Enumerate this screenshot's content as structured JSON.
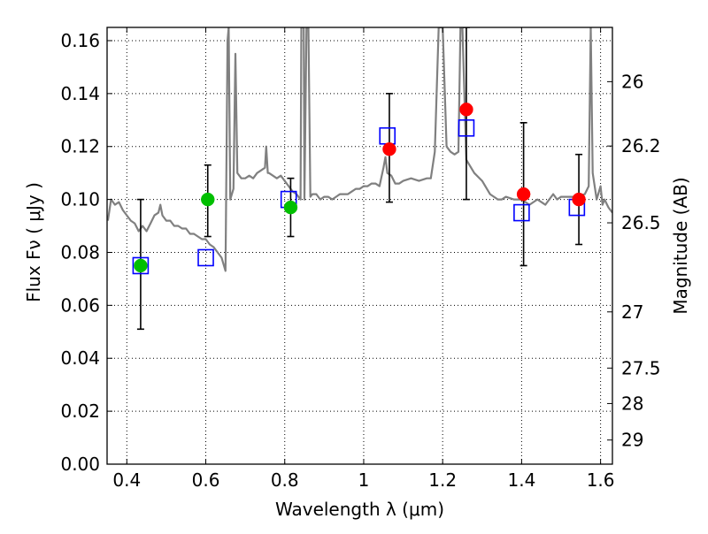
{
  "chart_data": {
    "type": "scatter",
    "xlabel": "Wavelength  λ (μm)",
    "ylabel": "Flux  Fν  ( μJy )",
    "y2label": "Magnitude (AB)",
    "xlim": [
      0.35,
      1.63
    ],
    "ylim": [
      0.0,
      0.165
    ],
    "grid": true,
    "x_ticks": [
      {
        "value": 0.4,
        "label": "0.4"
      },
      {
        "value": 0.6,
        "label": "0.6"
      },
      {
        "value": 0.8,
        "label": "0.8"
      },
      {
        "value": 1.0,
        "label": "1"
      },
      {
        "value": 1.2,
        "label": "1.2"
      },
      {
        "value": 1.4,
        "label": "1.4"
      },
      {
        "value": 1.6,
        "label": "1.6"
      }
    ],
    "y_ticks": [
      {
        "value": 0.0,
        "label": "0.00"
      },
      {
        "value": 0.02,
        "label": "0.02"
      },
      {
        "value": 0.04,
        "label": "0.04"
      },
      {
        "value": 0.06,
        "label": "0.06"
      },
      {
        "value": 0.08,
        "label": "0.08"
      },
      {
        "value": 0.1,
        "label": "0.10"
      },
      {
        "value": 0.12,
        "label": "0.12"
      },
      {
        "value": 0.14,
        "label": "0.14"
      },
      {
        "value": 0.16,
        "label": "0.16"
      }
    ],
    "y2_ticks": [
      {
        "value": 26,
        "label": "26"
      },
      {
        "value": 26.2,
        "label": "26.2"
      },
      {
        "value": 26.5,
        "label": "26.5"
      },
      {
        "value": 27,
        "label": "27"
      },
      {
        "value": 27.5,
        "label": "27.5"
      },
      {
        "value": 28,
        "label": "28"
      },
      {
        "value": 29,
        "label": "29"
      }
    ],
    "y2_zero_point_flux": 0.1445,
    "y2_zero_point_mag": 26,
    "series": [
      {
        "kind": "line",
        "color": "#808080",
        "points": [
          [
            0.352,
            0.092
          ],
          [
            0.36,
            0.1
          ],
          [
            0.37,
            0.098
          ],
          [
            0.38,
            0.099
          ],
          [
            0.39,
            0.096
          ],
          [
            0.4,
            0.094
          ],
          [
            0.41,
            0.092
          ],
          [
            0.42,
            0.091
          ],
          [
            0.43,
            0.088
          ],
          [
            0.44,
            0.09
          ],
          [
            0.45,
            0.088
          ],
          [
            0.46,
            0.091
          ],
          [
            0.47,
            0.094
          ],
          [
            0.48,
            0.095
          ],
          [
            0.485,
            0.098
          ],
          [
            0.49,
            0.094
          ],
          [
            0.5,
            0.092
          ],
          [
            0.51,
            0.092
          ],
          [
            0.52,
            0.09
          ],
          [
            0.53,
            0.09
          ],
          [
            0.54,
            0.089
          ],
          [
            0.55,
            0.089
          ],
          [
            0.56,
            0.087
          ],
          [
            0.57,
            0.087
          ],
          [
            0.58,
            0.086
          ],
          [
            0.59,
            0.085
          ],
          [
            0.6,
            0.085
          ],
          [
            0.61,
            0.083
          ],
          [
            0.62,
            0.082
          ],
          [
            0.63,
            0.08
          ],
          [
            0.64,
            0.078
          ],
          [
            0.65,
            0.073
          ],
          [
            0.655,
            0.16
          ],
          [
            0.658,
            0.165
          ],
          [
            0.662,
            0.1
          ],
          [
            0.67,
            0.104
          ],
          [
            0.675,
            0.155
          ],
          [
            0.68,
            0.11
          ],
          [
            0.69,
            0.108
          ],
          [
            0.7,
            0.108
          ],
          [
            0.71,
            0.109
          ],
          [
            0.72,
            0.108
          ],
          [
            0.73,
            0.11
          ],
          [
            0.74,
            0.111
          ],
          [
            0.75,
            0.112
          ],
          [
            0.753,
            0.12
          ],
          [
            0.757,
            0.11
          ],
          [
            0.76,
            0.11
          ],
          [
            0.77,
            0.109
          ],
          [
            0.78,
            0.108
          ],
          [
            0.79,
            0.109
          ],
          [
            0.8,
            0.107
          ],
          [
            0.81,
            0.105
          ],
          [
            0.82,
            0.103
          ],
          [
            0.83,
            0.102
          ],
          [
            0.84,
            0.1
          ],
          [
            0.842,
            0.165
          ],
          [
            0.848,
            0.165
          ],
          [
            0.85,
            0.1
          ],
          [
            0.855,
            0.165
          ],
          [
            0.86,
            0.165
          ],
          [
            0.865,
            0.101
          ],
          [
            0.87,
            0.102
          ],
          [
            0.88,
            0.102
          ],
          [
            0.89,
            0.1
          ],
          [
            0.9,
            0.101
          ],
          [
            0.91,
            0.101
          ],
          [
            0.92,
            0.1
          ],
          [
            0.93,
            0.101
          ],
          [
            0.94,
            0.102
          ],
          [
            0.95,
            0.102
          ],
          [
            0.96,
            0.102
          ],
          [
            0.97,
            0.103
          ],
          [
            0.98,
            0.104
          ],
          [
            0.99,
            0.104
          ],
          [
            1.0,
            0.105
          ],
          [
            1.01,
            0.105
          ],
          [
            1.02,
            0.106
          ],
          [
            1.03,
            0.106
          ],
          [
            1.04,
            0.105
          ],
          [
            1.05,
            0.112
          ],
          [
            1.055,
            0.116
          ],
          [
            1.06,
            0.11
          ],
          [
            1.07,
            0.109
          ],
          [
            1.08,
            0.106
          ],
          [
            1.09,
            0.106
          ],
          [
            1.1,
            0.107
          ],
          [
            1.12,
            0.108
          ],
          [
            1.14,
            0.107
          ],
          [
            1.16,
            0.108
          ],
          [
            1.17,
            0.108
          ],
          [
            1.18,
            0.118
          ],
          [
            1.19,
            0.165
          ],
          [
            1.2,
            0.165
          ],
          [
            1.21,
            0.12
          ],
          [
            1.22,
            0.118
          ],
          [
            1.23,
            0.117
          ],
          [
            1.24,
            0.118
          ],
          [
            1.245,
            0.165
          ],
          [
            1.25,
            0.165
          ],
          [
            1.26,
            0.115
          ],
          [
            1.28,
            0.11
          ],
          [
            1.3,
            0.107
          ],
          [
            1.32,
            0.102
          ],
          [
            1.34,
            0.1
          ],
          [
            1.35,
            0.1
          ],
          [
            1.36,
            0.101
          ],
          [
            1.38,
            0.1
          ],
          [
            1.4,
            0.1
          ],
          [
            1.42,
            0.098
          ],
          [
            1.44,
            0.1
          ],
          [
            1.45,
            0.099
          ],
          [
            1.46,
            0.098
          ],
          [
            1.47,
            0.1
          ],
          [
            1.48,
            0.102
          ],
          [
            1.49,
            0.1
          ],
          [
            1.5,
            0.101
          ],
          [
            1.52,
            0.101
          ],
          [
            1.54,
            0.101
          ],
          [
            1.56,
            0.102
          ],
          [
            1.57,
            0.105
          ],
          [
            1.575,
            0.165
          ],
          [
            1.58,
            0.11
          ],
          [
            1.59,
            0.1
          ],
          [
            1.6,
            0.105
          ],
          [
            1.605,
            0.098
          ],
          [
            1.61,
            0.1
          ],
          [
            1.62,
            0.097
          ],
          [
            1.63,
            0.095
          ]
        ]
      },
      {
        "kind": "errorbars",
        "color": "#000000",
        "bars": [
          {
            "x": 0.435,
            "low": 0.051,
            "high": 0.1
          },
          {
            "x": 0.605,
            "low": 0.086,
            "high": 0.113
          },
          {
            "x": 0.815,
            "low": 0.086,
            "high": 0.108
          },
          {
            "x": 1.065,
            "low": 0.099,
            "high": 0.14
          },
          {
            "x": 1.26,
            "low": 0.1,
            "high": 0.165
          },
          {
            "x": 1.405,
            "low": 0.075,
            "high": 0.129
          },
          {
            "x": 1.545,
            "low": 0.083,
            "high": 0.117
          }
        ]
      },
      {
        "kind": "open-squares",
        "color": "#0000ff",
        "points": [
          [
            0.435,
            0.075
          ],
          [
            0.6,
            0.078
          ],
          [
            0.81,
            0.1
          ],
          [
            1.06,
            0.124
          ],
          [
            1.26,
            0.127
          ],
          [
            1.4,
            0.095
          ],
          [
            1.54,
            0.097
          ]
        ]
      },
      {
        "kind": "filled-circles",
        "color": "#00bf00",
        "points": [
          [
            0.435,
            0.075
          ],
          [
            0.605,
            0.1
          ],
          [
            0.815,
            0.097
          ]
        ]
      },
      {
        "kind": "filled-circles",
        "color": "#ff0000",
        "points": [
          [
            1.065,
            0.119
          ],
          [
            1.26,
            0.134
          ],
          [
            1.405,
            0.102
          ],
          [
            1.545,
            0.1
          ]
        ]
      }
    ]
  }
}
